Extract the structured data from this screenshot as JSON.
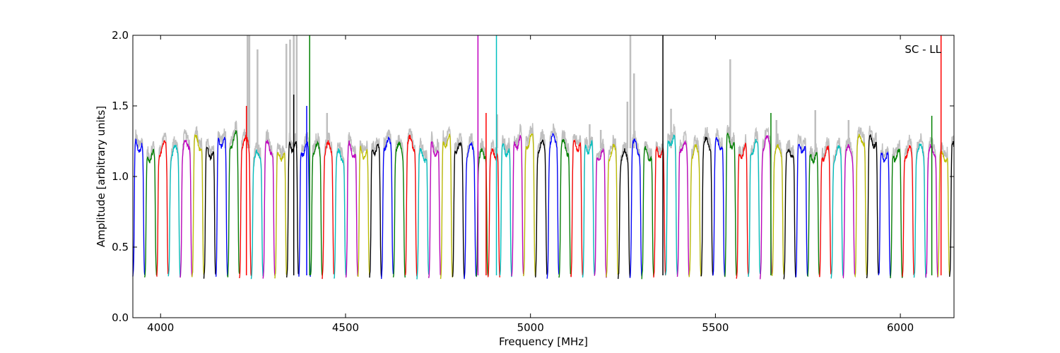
{
  "chart_data": {
    "type": "line",
    "title": "",
    "annotation": "SC - LL",
    "xlabel": "Frequency [MHz]",
    "ylabel": "Amplitude [arbitrary units]",
    "xlim": [
      3925,
      6145
    ],
    "ylim": [
      0.0,
      2.0
    ],
    "x_ticks": [
      4000,
      4500,
      5000,
      5500,
      6000
    ],
    "y_ticks": [
      0.0,
      0.5,
      1.0,
      1.5,
      2.0
    ],
    "x_tick_labels": [
      "4000",
      "4500",
      "5000",
      "5500",
      "6000"
    ],
    "y_tick_labels": [
      "0.0",
      "0.5",
      "1.0",
      "1.5",
      "2.0"
    ],
    "grid": false,
    "legend": "none",
    "background_trace_color": "#bfbfbf",
    "color_cycle": [
      "#0000ff",
      "#008000",
      "#ff0000",
      "#00bfbf",
      "#bf00bf",
      "#bfbf00",
      "#000000"
    ],
    "channel_width_mhz": 32,
    "band_start_mhz": 3925,
    "band_end_mhz": 6145,
    "channel_base_amplitude": 1.2,
    "channel_edge_amplitude": 0.28,
    "spikes": [
      {
        "x": 4232,
        "y": 1.5,
        "color": "#ff0000"
      },
      {
        "x": 4403,
        "y": 2.0,
        "color": "#008000"
      },
      {
        "x": 4360,
        "y": 1.58,
        "color": "#000000"
      },
      {
        "x": 4858,
        "y": 2.0,
        "color": "#bf00bf"
      },
      {
        "x": 4908,
        "y": 2.0,
        "color": "#00bfbf"
      },
      {
        "x": 5358,
        "y": 2.0,
        "color": "#000000"
      },
      {
        "x": 6110,
        "y": 2.0,
        "color": "#ff0000"
      },
      {
        "x": 4880,
        "y": 1.45,
        "color": "#ff0000"
      },
      {
        "x": 4395,
        "y": 1.5,
        "color": "#0000ff"
      },
      {
        "x": 5650,
        "y": 1.45,
        "color": "#008000"
      },
      {
        "x": 6085,
        "y": 1.43,
        "color": "#008000"
      }
    ],
    "grey_spikes": [
      {
        "x": 4235,
        "y": 2.0
      },
      {
        "x": 4240,
        "y": 2.0
      },
      {
        "x": 4262,
        "y": 1.9
      },
      {
        "x": 4340,
        "y": 1.94
      },
      {
        "x": 4350,
        "y": 1.97
      },
      {
        "x": 4360,
        "y": 2.0
      },
      {
        "x": 4368,
        "y": 2.0
      },
      {
        "x": 4450,
        "y": 1.45
      },
      {
        "x": 4910,
        "y": 1.44
      },
      {
        "x": 5190,
        "y": 1.33
      },
      {
        "x": 5262,
        "y": 1.53
      },
      {
        "x": 5270,
        "y": 2.0
      },
      {
        "x": 5280,
        "y": 1.73
      },
      {
        "x": 5540,
        "y": 1.83
      },
      {
        "x": 5665,
        "y": 1.4
      },
      {
        "x": 5770,
        "y": 1.47
      },
      {
        "x": 5860,
        "y": 1.4
      },
      {
        "x": 5160,
        "y": 1.37
      },
      {
        "x": 4175,
        "y": 1.32
      },
      {
        "x": 5380,
        "y": 1.48
      }
    ]
  }
}
